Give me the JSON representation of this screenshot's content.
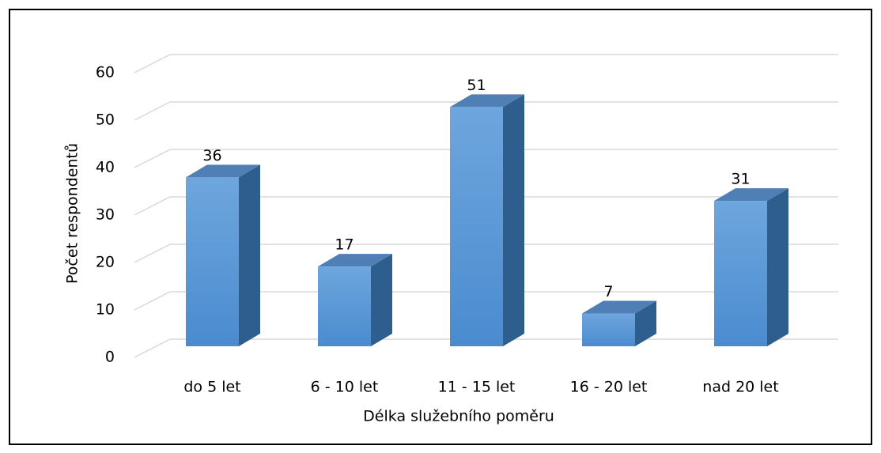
{
  "chart_data": {
    "type": "bar3d",
    "categories": [
      "do 5 let",
      "6 - 10 let",
      "11 - 15 let",
      "16 - 20 let",
      "nad 20 let"
    ],
    "values": [
      36,
      17,
      51,
      7,
      31
    ],
    "color": "#5b9bd5",
    "ylim": [
      0,
      60
    ],
    "yticks": [
      0,
      10,
      20,
      30,
      40,
      50,
      60
    ],
    "grid": true,
    "x_label": "Délka služebního poměru",
    "y_label": "Počet respondentů"
  }
}
